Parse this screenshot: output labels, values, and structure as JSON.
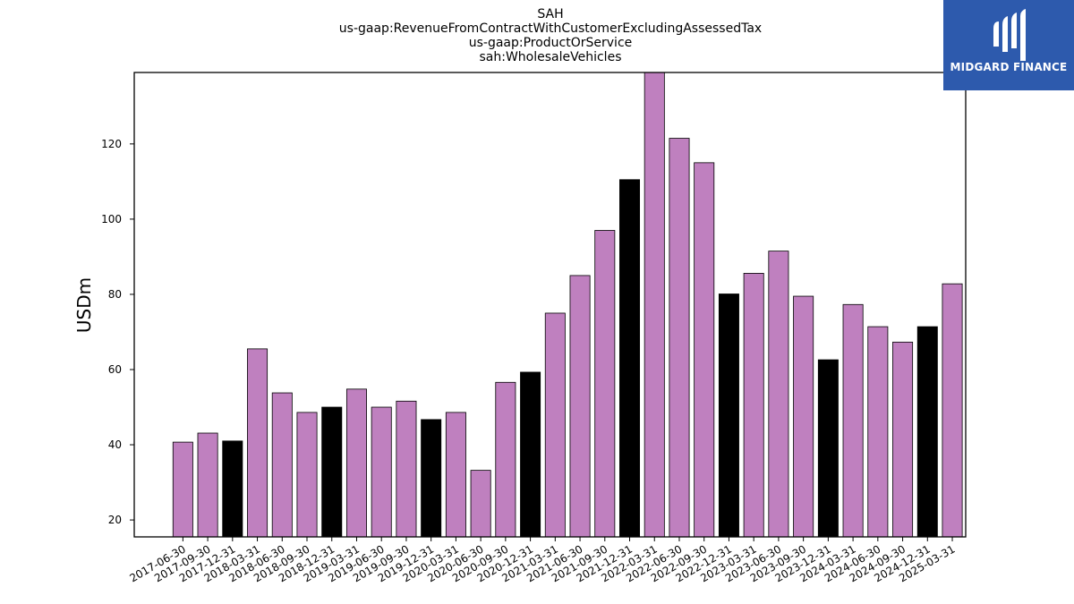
{
  "chart_data": {
    "type": "bar",
    "title_lines": [
      "SAH",
      "us-gaap:RevenueFromContractWithCustomerExcludingAssessedTax",
      "us-gaap:ProductOrService",
      "sah:WholesaleVehicles"
    ],
    "xlabel": "",
    "ylabel": "USDm",
    "ylim": [
      15.5,
      139
    ],
    "yticks": [
      20,
      40,
      60,
      80,
      100,
      120
    ],
    "grid": false,
    "legend": "none",
    "colors": {
      "default": "#bf80bf",
      "q4": "#000000",
      "edge": "#000000"
    },
    "categories": [
      "2017-06-30",
      "2017-09-30",
      "2017-12-31",
      "2018-03-31",
      "2018-06-30",
      "2018-09-30",
      "2018-12-31",
      "2019-03-31",
      "2019-06-30",
      "2019-09-30",
      "2019-12-31",
      "2020-03-31",
      "2020-06-30",
      "2020-09-30",
      "2020-12-31",
      "2021-03-31",
      "2021-06-30",
      "2021-09-30",
      "2021-12-31",
      "2022-03-31",
      "2022-06-30",
      "2022-09-30",
      "2022-12-31",
      "2023-03-31",
      "2023-06-30",
      "2023-09-30",
      "2023-12-31",
      "2024-03-31",
      "2024-06-30",
      "2024-09-30",
      "2024-12-31",
      "2025-03-31"
    ],
    "values": [
      40.7,
      43.1,
      41.0,
      65.5,
      53.8,
      48.6,
      50.0,
      54.8,
      50.0,
      51.6,
      46.7,
      48.6,
      33.2,
      56.6,
      59.3,
      75.0,
      85.0,
      97.0,
      110.5,
      139.0,
      121.5,
      115.0,
      80.1,
      85.6,
      91.5,
      79.5,
      62.6,
      77.3,
      71.4,
      67.3,
      71.4,
      82.8
    ]
  },
  "logo": {
    "text": "MIDGARD FINANCE",
    "icon": "midgard-finance-logo-icon"
  }
}
